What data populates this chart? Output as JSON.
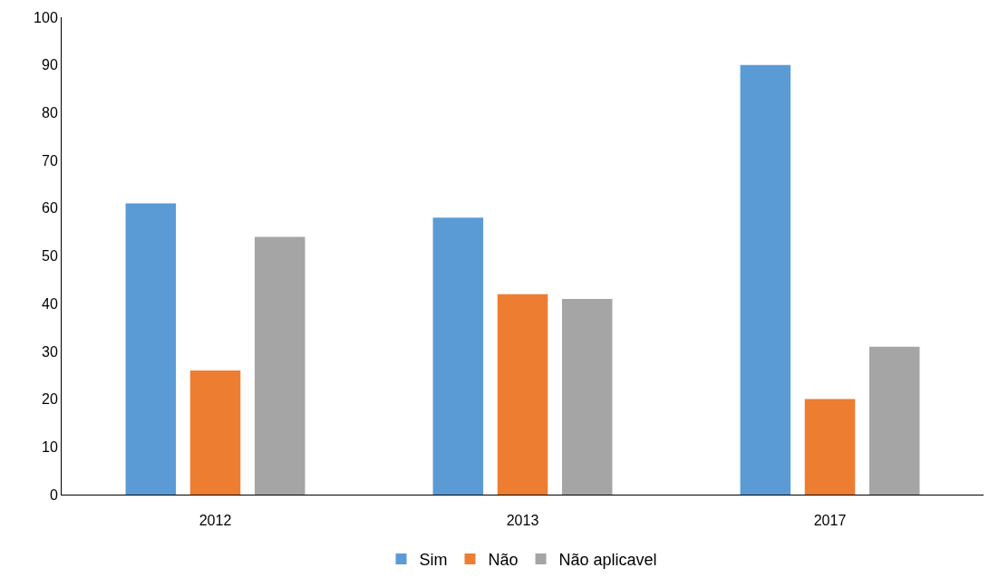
{
  "chart_data": {
    "type": "bar",
    "categories": [
      "2012",
      "2013",
      "2017"
    ],
    "series": [
      {
        "name": "Sim",
        "color": "#5b9bd5",
        "values": [
          61,
          58,
          90
        ]
      },
      {
        "name": "Não",
        "color": "#ed7d31",
        "values": [
          26,
          42,
          20
        ]
      },
      {
        "name": "Não aplicavel",
        "color": "#a5a5a5",
        "values": [
          54,
          41,
          31
        ]
      }
    ],
    "ylim": [
      0,
      100
    ],
    "yticks": [
      0,
      10,
      20,
      30,
      40,
      50,
      60,
      70,
      80,
      90,
      100
    ],
    "legend": "bottom"
  }
}
